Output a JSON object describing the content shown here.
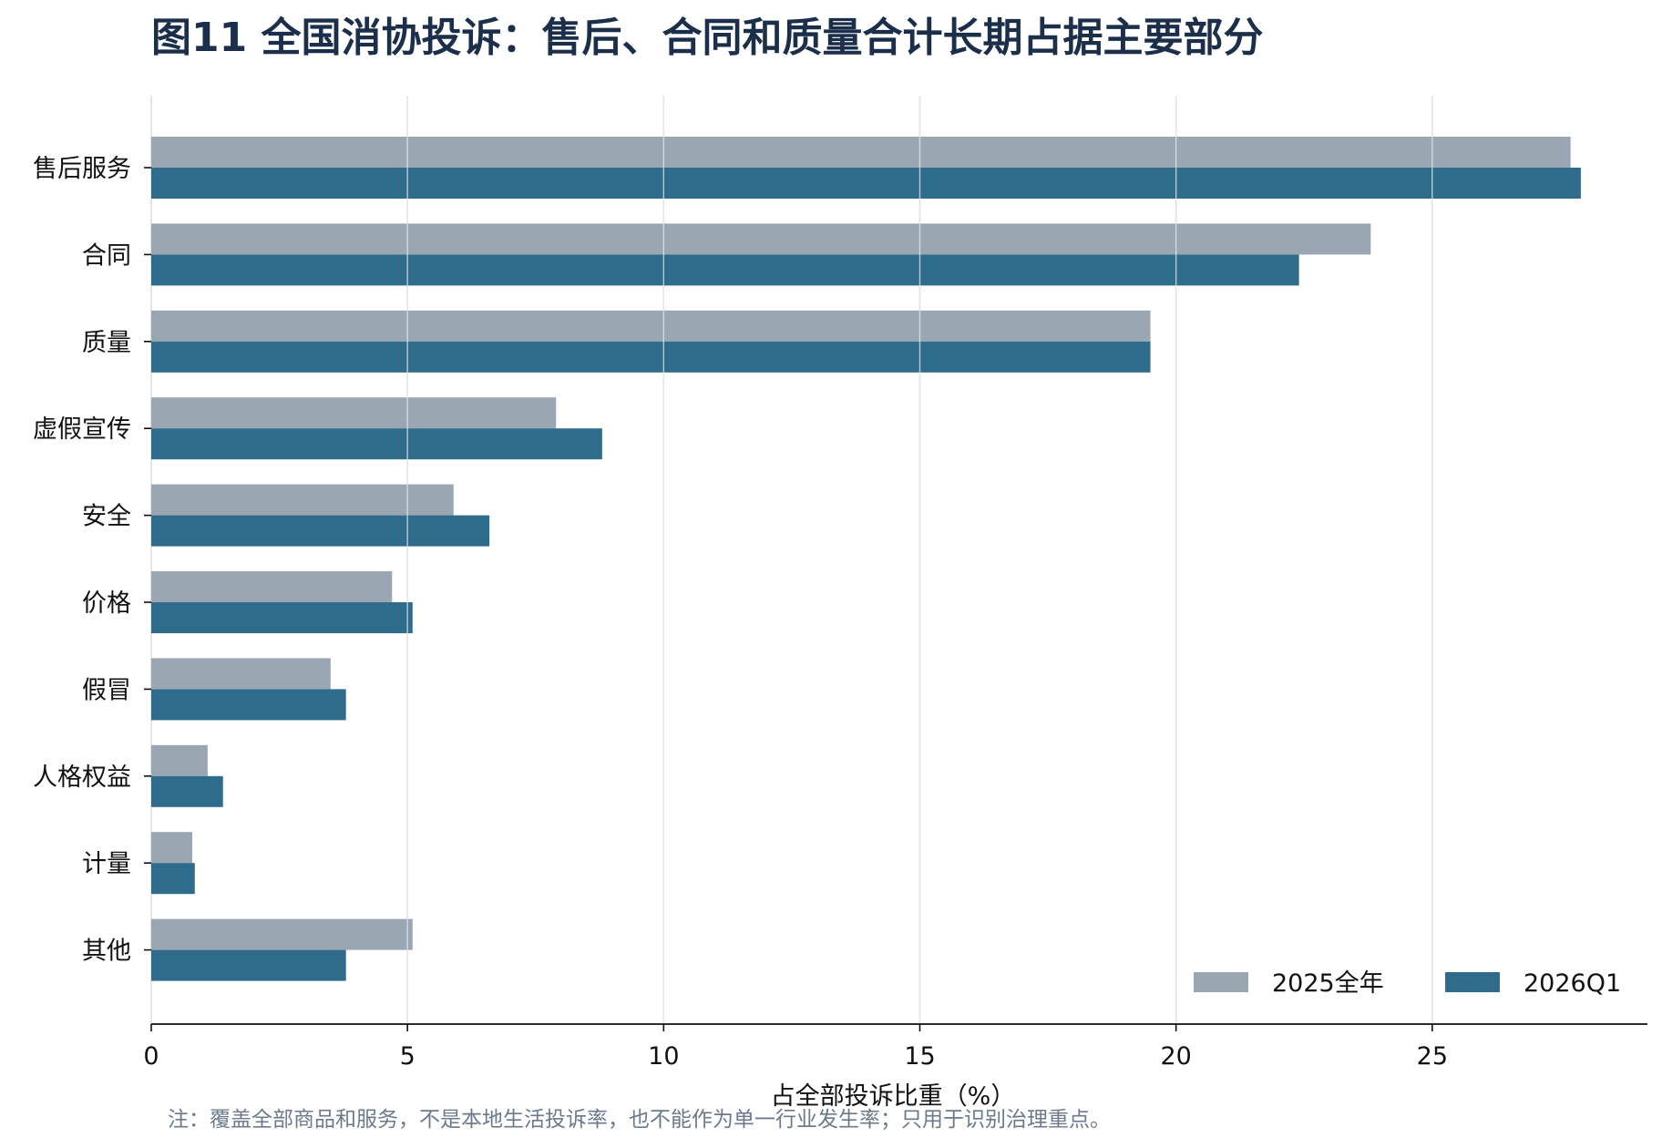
{
  "chart_data": {
    "type": "bar",
    "orientation": "horizontal",
    "title": "图11 全国消协投诉：售后、合同和质量合计长期占据主要部分",
    "xlabel": "占全部投诉比重（%）",
    "ylabel": "",
    "xlim": [
      0,
      29.2
    ],
    "xticks": [
      0,
      5,
      10,
      15,
      20,
      25
    ],
    "grid": "vertical",
    "legend_position": "bottom-right",
    "categories": [
      "售后服务",
      "合同",
      "质量",
      "虚假宣传",
      "安全",
      "价格",
      "假冒",
      "人格权益",
      "计量",
      "其他"
    ],
    "series": [
      {
        "name": "2025全年",
        "color": "#9aa7b2",
        "values": [
          27.7,
          23.8,
          19.5,
          7.9,
          5.9,
          4.7,
          3.5,
          1.1,
          0.8,
          5.1
        ]
      },
      {
        "name": "2026Q1",
        "color": "#2f6b8b",
        "values": [
          27.9,
          22.4,
          19.5,
          8.8,
          6.6,
          5.1,
          3.8,
          1.4,
          0.85,
          3.8
        ]
      }
    ],
    "note": "注：覆盖全部商品和服务，不是本地生活投诉率，也不能作为单一行业发生率；只用于识别治理重点。"
  }
}
